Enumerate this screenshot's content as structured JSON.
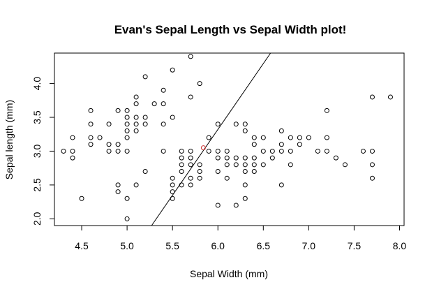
{
  "chart_data": {
    "type": "scatter",
    "title": "Evan's Sepal Length vs Sepal Width plot!",
    "xlabel": "Sepal Width (mm)",
    "ylabel": "Sepal length (mm)",
    "xlim": [
      4.2,
      8.05
    ],
    "ylim": [
      1.9,
      4.45
    ],
    "xticks": [
      "4.5",
      "5.0",
      "5.5",
      "6.0",
      "6.5",
      "7.0",
      "7.5",
      "8.0"
    ],
    "xtick_values": [
      4.5,
      5.0,
      5.5,
      6.0,
      6.5,
      7.0,
      7.5,
      8.0
    ],
    "yticks": [
      "2.0",
      "2.5",
      "3.0",
      "3.5",
      "4.0"
    ],
    "ytick_values": [
      2.0,
      2.5,
      3.0,
      3.5,
      4.0
    ],
    "grid": false,
    "series": [
      {
        "marker": "open-circle",
        "color": "#000000",
        "points": [
          [
            4.3,
            3.0
          ],
          [
            4.4,
            2.9
          ],
          [
            4.4,
            3.0
          ],
          [
            4.4,
            3.2
          ],
          [
            4.5,
            2.3
          ],
          [
            4.6,
            3.1
          ],
          [
            4.6,
            3.2
          ],
          [
            4.6,
            3.4
          ],
          [
            4.6,
            3.6
          ],
          [
            4.7,
            3.2
          ],
          [
            4.8,
            3.0
          ],
          [
            4.8,
            3.1
          ],
          [
            4.8,
            3.4
          ],
          [
            4.9,
            2.4
          ],
          [
            4.9,
            2.5
          ],
          [
            4.9,
            3.0
          ],
          [
            4.9,
            3.1
          ],
          [
            4.9,
            3.6
          ],
          [
            5.0,
            2.0
          ],
          [
            5.0,
            2.3
          ],
          [
            5.0,
            3.0
          ],
          [
            5.0,
            3.2
          ],
          [
            5.0,
            3.3
          ],
          [
            5.0,
            3.4
          ],
          [
            5.0,
            3.5
          ],
          [
            5.0,
            3.6
          ],
          [
            5.1,
            2.5
          ],
          [
            5.1,
            3.3
          ],
          [
            5.1,
            3.4
          ],
          [
            5.1,
            3.5
          ],
          [
            5.1,
            3.7
          ],
          [
            5.1,
            3.8
          ],
          [
            5.2,
            2.7
          ],
          [
            5.2,
            3.4
          ],
          [
            5.2,
            3.5
          ],
          [
            5.2,
            4.1
          ],
          [
            5.3,
            3.7
          ],
          [
            5.4,
            3.0
          ],
          [
            5.4,
            3.4
          ],
          [
            5.4,
            3.7
          ],
          [
            5.4,
            3.9
          ],
          [
            5.5,
            2.3
          ],
          [
            5.5,
            2.4
          ],
          [
            5.5,
            2.5
          ],
          [
            5.5,
            2.6
          ],
          [
            5.5,
            3.5
          ],
          [
            5.5,
            4.2
          ],
          [
            5.6,
            2.5
          ],
          [
            5.6,
            2.7
          ],
          [
            5.6,
            2.8
          ],
          [
            5.6,
            2.9
          ],
          [
            5.6,
            3.0
          ],
          [
            5.7,
            2.5
          ],
          [
            5.7,
            2.6
          ],
          [
            5.7,
            2.8
          ],
          [
            5.7,
            2.9
          ],
          [
            5.7,
            3.0
          ],
          [
            5.7,
            3.8
          ],
          [
            5.7,
            4.4
          ],
          [
            5.8,
            2.6
          ],
          [
            5.8,
            2.7
          ],
          [
            5.8,
            2.8
          ],
          [
            5.8,
            4.0
          ],
          [
            5.9,
            3.0
          ],
          [
            5.9,
            3.2
          ],
          [
            6.0,
            2.2
          ],
          [
            6.0,
            2.7
          ],
          [
            6.0,
            2.9
          ],
          [
            6.0,
            3.0
          ],
          [
            6.0,
            3.4
          ],
          [
            6.1,
            2.6
          ],
          [
            6.1,
            2.8
          ],
          [
            6.1,
            2.9
          ],
          [
            6.1,
            3.0
          ],
          [
            6.2,
            2.2
          ],
          [
            6.2,
            2.8
          ],
          [
            6.2,
            2.9
          ],
          [
            6.2,
            3.4
          ],
          [
            6.3,
            2.3
          ],
          [
            6.3,
            2.5
          ],
          [
            6.3,
            2.7
          ],
          [
            6.3,
            2.8
          ],
          [
            6.3,
            2.9
          ],
          [
            6.3,
            3.3
          ],
          [
            6.3,
            3.4
          ],
          [
            6.4,
            2.7
          ],
          [
            6.4,
            2.8
          ],
          [
            6.4,
            2.9
          ],
          [
            6.4,
            3.1
          ],
          [
            6.4,
            3.2
          ],
          [
            6.5,
            2.8
          ],
          [
            6.5,
            3.0
          ],
          [
            6.5,
            3.2
          ],
          [
            6.6,
            2.9
          ],
          [
            6.6,
            3.0
          ],
          [
            6.7,
            2.5
          ],
          [
            6.7,
            3.0
          ],
          [
            6.7,
            3.1
          ],
          [
            6.7,
            3.3
          ],
          [
            6.8,
            2.8
          ],
          [
            6.8,
            3.0
          ],
          [
            6.8,
            3.2
          ],
          [
            6.9,
            3.1
          ],
          [
            6.9,
            3.2
          ],
          [
            7.0,
            3.2
          ],
          [
            7.1,
            3.0
          ],
          [
            7.2,
            3.0
          ],
          [
            7.2,
            3.2
          ],
          [
            7.2,
            3.6
          ],
          [
            7.3,
            2.9
          ],
          [
            7.4,
            2.8
          ],
          [
            7.6,
            3.0
          ],
          [
            7.7,
            2.6
          ],
          [
            7.7,
            2.8
          ],
          [
            7.7,
            3.0
          ],
          [
            7.7,
            3.8
          ],
          [
            7.9,
            3.8
          ]
        ]
      },
      {
        "marker": "open-circle",
        "color": "#cc3333",
        "points": [
          [
            5.84,
            3.05
          ]
        ]
      }
    ],
    "line": {
      "color": "#000000",
      "points": [
        [
          5.27,
          1.9
        ],
        [
          6.58,
          4.45
        ]
      ]
    }
  }
}
